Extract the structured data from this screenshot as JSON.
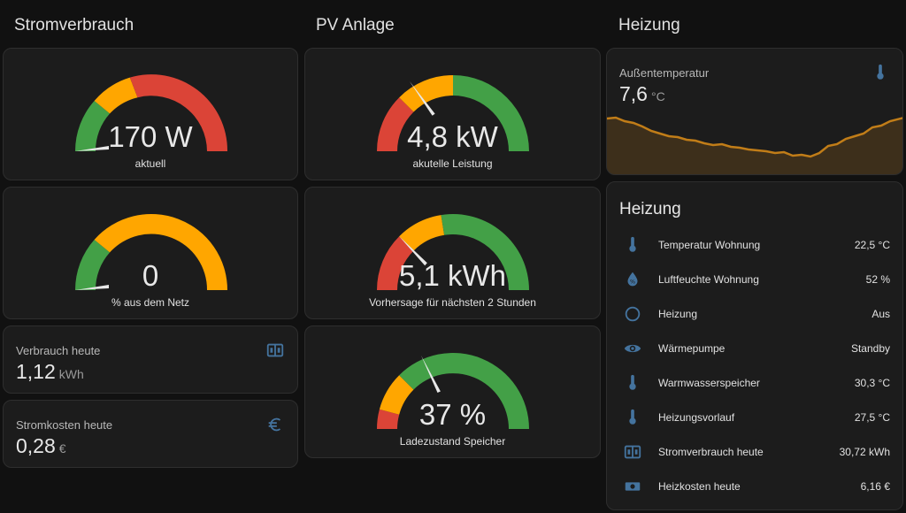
{
  "columns": {
    "strom": "Stromverbrauch",
    "pv": "PV Anlage",
    "heizung": "Heizung"
  },
  "gauges": {
    "strom_aktuell": {
      "value": "170 W",
      "label": "aktuell",
      "needle_fraction": 0.0
    },
    "netz": {
      "value": "0",
      "label": "% aus dem Netz",
      "needle_fraction": 0.0
    },
    "pv_leistung": {
      "value": "4,8 kW",
      "label": "akutelle Leistung",
      "needle_fraction": 0.35
    },
    "pv_forecast": {
      "value": "5,1 kWh",
      "label": "Vorhersage für nächsten 2 Stunden",
      "needle_fraction": 0.25
    },
    "speicher": {
      "value": "37 %",
      "label": "Ladezustand Speicher",
      "needle_fraction": 0.37
    }
  },
  "entities": {
    "verbrauch_heute": {
      "name": "Verbrauch heute",
      "value": "1,12",
      "unit": "kWh",
      "icon": "meter-icon"
    },
    "stromkosten_heute": {
      "name": "Stromkosten heute",
      "value": "0,28",
      "unit": "€",
      "icon": "euro-icon"
    },
    "aussentemperatur": {
      "name": "Außentemperatur",
      "value": "7,6",
      "unit": "°C",
      "icon": "thermometer-icon"
    }
  },
  "heizung_list": {
    "title": "Heizung",
    "rows": [
      {
        "name": "Temperatur Wohnung",
        "value": "22,5 °C",
        "icon": "thermometer-icon"
      },
      {
        "name": "Luftfeuchte Wohnung",
        "value": "52 %",
        "icon": "water-percent-icon"
      },
      {
        "name": "Heizung",
        "value": "Aus",
        "icon": "circle-outline-icon"
      },
      {
        "name": "Wärmepumpe",
        "value": "Standby",
        "icon": "eye-icon"
      },
      {
        "name": "Warmwasserspeicher",
        "value": "30,3 °C",
        "icon": "thermometer-icon"
      },
      {
        "name": "Heizungsvorlauf",
        "value": "27,5 °C",
        "icon": "thermometer-icon"
      },
      {
        "name": "Stromverbrauch heute",
        "value": "30,72 kWh",
        "icon": "meter-icon"
      },
      {
        "name": "Heizkosten heute",
        "value": "6,16 €",
        "icon": "cash-icon"
      }
    ]
  },
  "colors": {
    "green": "#43a047",
    "yellow": "#ffa600",
    "red": "#db4437",
    "icon_blue": "#44739e",
    "sparkline": "#c17d18"
  }
}
